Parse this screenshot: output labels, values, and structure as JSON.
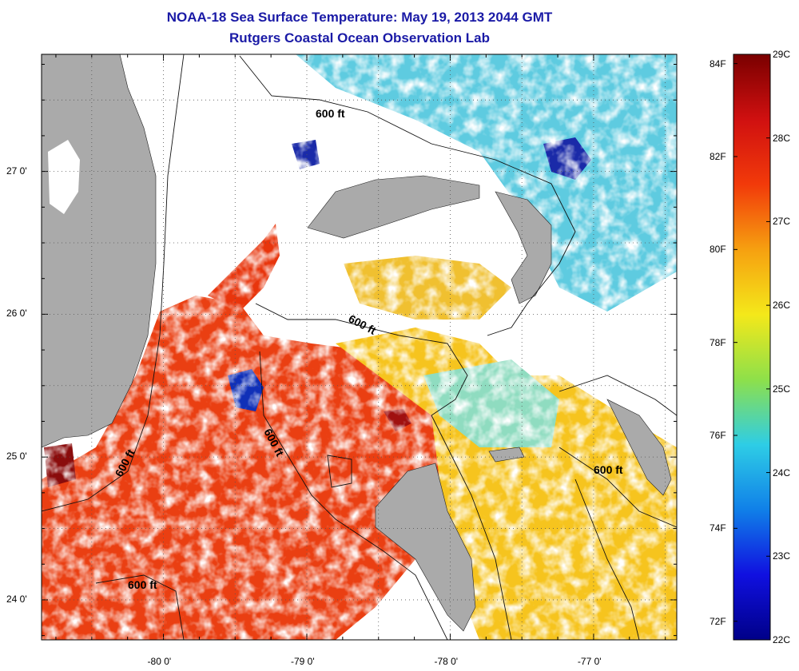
{
  "title": {
    "line1": "NOAA-18 Sea Surface Temperature:  May 19, 2013 2044 GMT",
    "line2": "Rutgers Coastal Ocean Observation Lab"
  },
  "map": {
    "lon_range": [
      -80.85,
      -76.42
    ],
    "lat_range": [
      23.72,
      27.82
    ],
    "x_ticks": [
      {
        "value": -80,
        "label": "-80 0'"
      },
      {
        "value": -79,
        "label": "-79 0'"
      },
      {
        "value": -78,
        "label": "-78 0'"
      },
      {
        "value": -77,
        "label": "-77 0'"
      }
    ],
    "y_ticks": [
      {
        "value": 27,
        "label": "27 0'"
      },
      {
        "value": 26,
        "label": "26 0'"
      },
      {
        "value": 25,
        "label": "25 0'"
      },
      {
        "value": 24,
        "label": "24 0'"
      }
    ],
    "contour_labels": [
      "600 ft",
      "600 ft",
      "600 ft",
      "600 ft",
      "600 ft",
      "600 ft"
    ],
    "colors": {
      "land": "#aaaaaa",
      "cloud": "#ffffff",
      "warm_core": "#e83a0f",
      "mid": "#f7d21a",
      "cool": "#3ac3e0",
      "cold": "#0a1aa0"
    }
  },
  "colorbar": {
    "celsius_range": [
      22,
      29
    ],
    "celsius_labels": [
      "29C",
      "28C",
      "27C",
      "26C",
      "25C",
      "24C",
      "23C",
      "22C"
    ],
    "fahrenheit_labels": [
      {
        "value": 84,
        "label": "84F"
      },
      {
        "value": 82,
        "label": "82F"
      },
      {
        "value": 80,
        "label": "80F"
      },
      {
        "value": 78,
        "label": "78F"
      },
      {
        "value": 76,
        "label": "76F"
      },
      {
        "value": 74,
        "label": "74F"
      },
      {
        "value": 72,
        "label": "72F"
      }
    ],
    "gradient": [
      "#7a0000",
      "#d01010",
      "#f23a0a",
      "#f6a010",
      "#f4e81a",
      "#8ee04a",
      "#2ecde6",
      "#1080e8",
      "#1010e0",
      "#000088"
    ]
  }
}
